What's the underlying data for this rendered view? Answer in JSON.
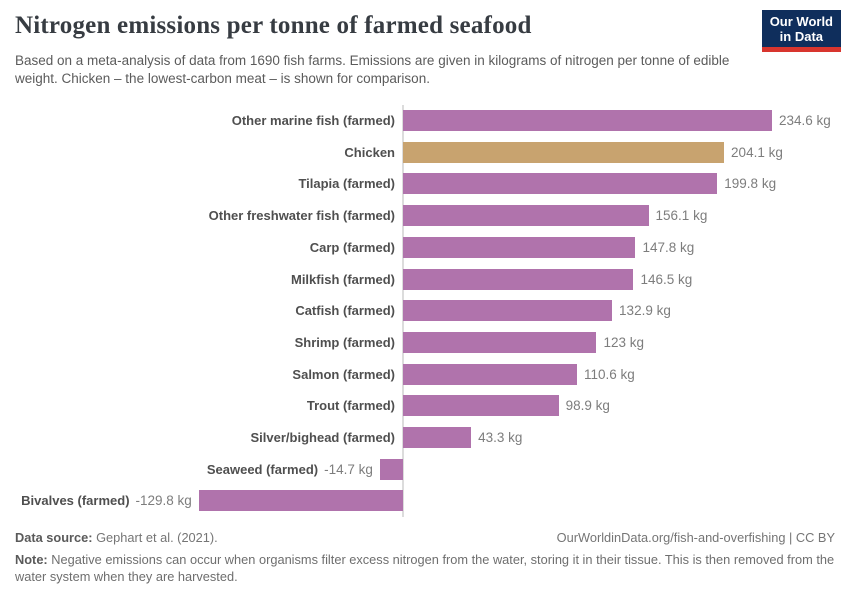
{
  "header": {
    "title": "Nitrogen emissions per tonne of farmed seafood",
    "subtitle": "Based on a meta-analysis of data from 1690 fish farms. Emissions are given in kilograms of nitrogen per tonne of edible weight. Chicken – the lowest-carbon meat – is shown for comparison.",
    "logo": {
      "line1": "Our World",
      "line2": "in Data",
      "background": "#0f2e5c",
      "accent": "#d8352e",
      "text_color": "#ffffff"
    }
  },
  "chart_data": {
    "type": "bar",
    "orientation": "horizontal",
    "title": "Nitrogen emissions per tonne of farmed seafood",
    "unit": "kg",
    "xlim": [
      -129.8,
      234.6
    ],
    "grid": false,
    "legend": false,
    "bar_color": "#b073ac",
    "highlight_color": "#c8a36f",
    "axis_color": "#dcdcdc",
    "rows": [
      {
        "label": "Other marine fish (farmed)",
        "value": 234.6,
        "value_label": "234.6 kg"
      },
      {
        "label": "Chicken",
        "value": 204.1,
        "value_label": "204.1 kg",
        "highlight": true
      },
      {
        "label": "Tilapia (farmed)",
        "value": 199.8,
        "value_label": "199.8 kg"
      },
      {
        "label": "Other freshwater fish (farmed)",
        "value": 156.1,
        "value_label": "156.1 kg"
      },
      {
        "label": "Carp (farmed)",
        "value": 147.8,
        "value_label": "147.8 kg"
      },
      {
        "label": "Milkfish (farmed)",
        "value": 146.5,
        "value_label": "146.5 kg"
      },
      {
        "label": "Catfish (farmed)",
        "value": 132.9,
        "value_label": "132.9 kg"
      },
      {
        "label": "Shrimp (farmed)",
        "value": 123,
        "value_label": "123 kg"
      },
      {
        "label": "Salmon (farmed)",
        "value": 110.6,
        "value_label": "110.6 kg"
      },
      {
        "label": "Trout (farmed)",
        "value": 98.9,
        "value_label": "98.9 kg"
      },
      {
        "label": "Silver/bighead (farmed)",
        "value": 43.3,
        "value_label": "43.3 kg"
      },
      {
        "label": "Seaweed (farmed)",
        "value": -14.7,
        "value_label": "-14.7 kg"
      },
      {
        "label": "Bivalves (farmed)",
        "value": -129.8,
        "value_label": "-129.8 kg"
      }
    ]
  },
  "footer": {
    "data_source_label": "Data source:",
    "data_source_value": " Gephart et al. (2021).",
    "link": "OurWorldinData.org/fish-and-overfishing | CC BY",
    "note_label": "Note:",
    "note_value": " Negative emissions can occur when organisms filter excess nitrogen from the water, storing it in their tissue. This is then removed from the water system when they are harvested."
  }
}
